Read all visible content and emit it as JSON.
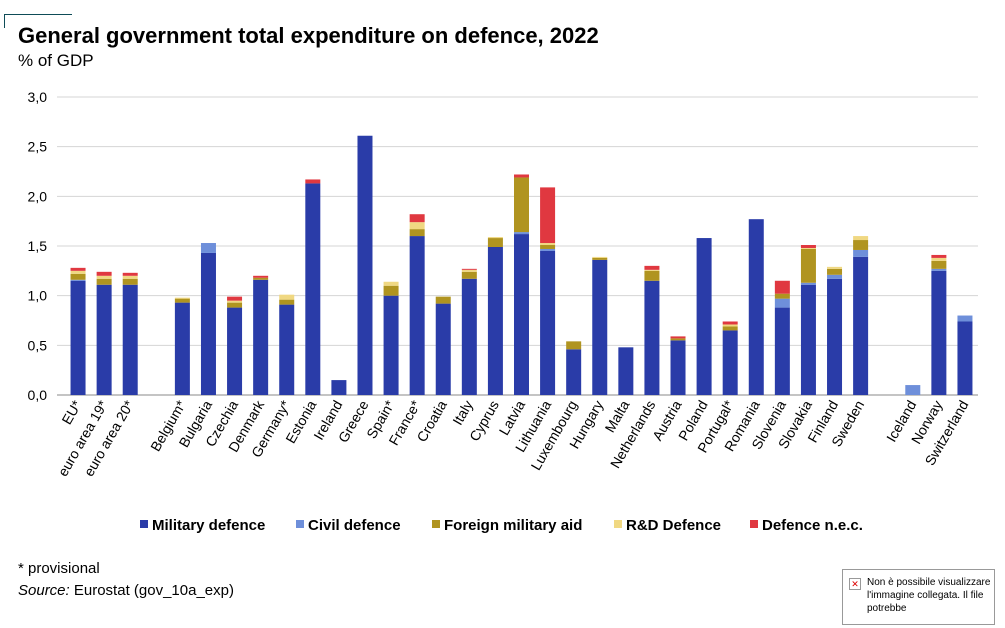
{
  "title": "General government total expenditure on defence, 2022",
  "subtitle": "% of GDP",
  "footnote": "* provisional",
  "source_label": "Source:",
  "source_text": " Eurostat (gov_10a_exp)",
  "broken_image_text": "Non è possibile visualizzare l'immagine collegata. Il file potrebbe",
  "chart_data": {
    "type": "bar",
    "stacked": true,
    "ylim": [
      0,
      3.0
    ],
    "yticks": [
      "0,0",
      "0,5",
      "1,0",
      "1,5",
      "2,0",
      "2,5",
      "3,0"
    ],
    "grid": true,
    "legend_position": "bottom",
    "categories": [
      "EU*",
      "euro area 19*",
      "euro area 20*",
      "",
      "Belgium*",
      "Bulgaria",
      "Czechia",
      "Denmark",
      "Germany*",
      "Estonia",
      "Ireland",
      "Greece",
      "Spain*",
      "France*",
      "Croatia",
      "Italy",
      "Cyprus",
      "Latvia",
      "Lithuania",
      "Luxembourg",
      "Hungary",
      "Malta",
      "Netherlands",
      "Austria",
      "Poland",
      "Portugal*",
      "Romania",
      "Slovenia",
      "Slovakia",
      "Finland",
      "Sweden",
      "",
      "Iceland",
      "Norway",
      "Switzerland"
    ],
    "series": [
      {
        "name": "Military defence",
        "color": "#2a3ca8",
        "values": [
          1.15,
          1.11,
          1.11,
          null,
          0.93,
          1.43,
          0.88,
          1.16,
          0.91,
          2.13,
          0.15,
          2.61,
          1.0,
          1.6,
          0.92,
          1.17,
          1.49,
          1.62,
          1.45,
          0.46,
          1.36,
          0.48,
          1.15,
          0.55,
          1.58,
          0.65,
          1.77,
          0.88,
          1.11,
          1.17,
          1.39,
          null,
          0.0,
          1.25,
          0.74
        ]
      },
      {
        "name": "Civil defence",
        "color": "#6e8fda",
        "values": [
          0.01,
          0.0,
          0.0,
          null,
          0.0,
          0.1,
          0.0,
          0.0,
          0.0,
          0.0,
          0.0,
          0.0,
          0.0,
          0.0,
          0.0,
          0.0,
          0.0,
          0.02,
          0.02,
          0.0,
          0.0,
          0.0,
          0.0,
          0.0,
          0.0,
          0.0,
          0.0,
          0.09,
          0.02,
          0.04,
          0.07,
          null,
          0.1,
          0.02,
          0.06
        ]
      },
      {
        "name": "Foreign military aid",
        "color": "#b09420",
        "values": [
          0.06,
          0.06,
          0.06,
          null,
          0.04,
          0.0,
          0.05,
          0.02,
          0.05,
          0.0,
          0.0,
          0.0,
          0.1,
          0.07,
          0.07,
          0.07,
          0.09,
          0.55,
          0.04,
          0.08,
          0.02,
          0.0,
          0.1,
          0.02,
          0.0,
          0.04,
          0.0,
          0.05,
          0.34,
          0.06,
          0.1,
          null,
          0.0,
          0.08,
          0.0
        ]
      },
      {
        "name": "R&D Defence",
        "color": "#f0d882",
        "values": [
          0.03,
          0.03,
          0.03,
          null,
          0.01,
          0.0,
          0.02,
          0.0,
          0.05,
          0.0,
          0.0,
          0.0,
          0.04,
          0.07,
          0.0,
          0.02,
          0.01,
          0.0,
          0.02,
          0.0,
          0.01,
          0.0,
          0.01,
          0.0,
          0.0,
          0.02,
          0.0,
          0.0,
          0.01,
          0.02,
          0.04,
          null,
          0.0,
          0.03,
          0.0
        ]
      },
      {
        "name": "Defence n.e.c.",
        "color": "#e03840",
        "values": [
          0.03,
          0.04,
          0.03,
          null,
          0.0,
          0.0,
          0.04,
          0.02,
          0.0,
          0.04,
          0.0,
          0.0,
          0.0,
          0.08,
          0.0,
          0.01,
          0.0,
          0.03,
          0.56,
          0.0,
          0.0,
          0.0,
          0.04,
          0.02,
          0.0,
          0.03,
          0.0,
          0.13,
          0.03,
          0.0,
          0.0,
          null,
          0.0,
          0.03,
          0.0
        ]
      }
    ]
  }
}
